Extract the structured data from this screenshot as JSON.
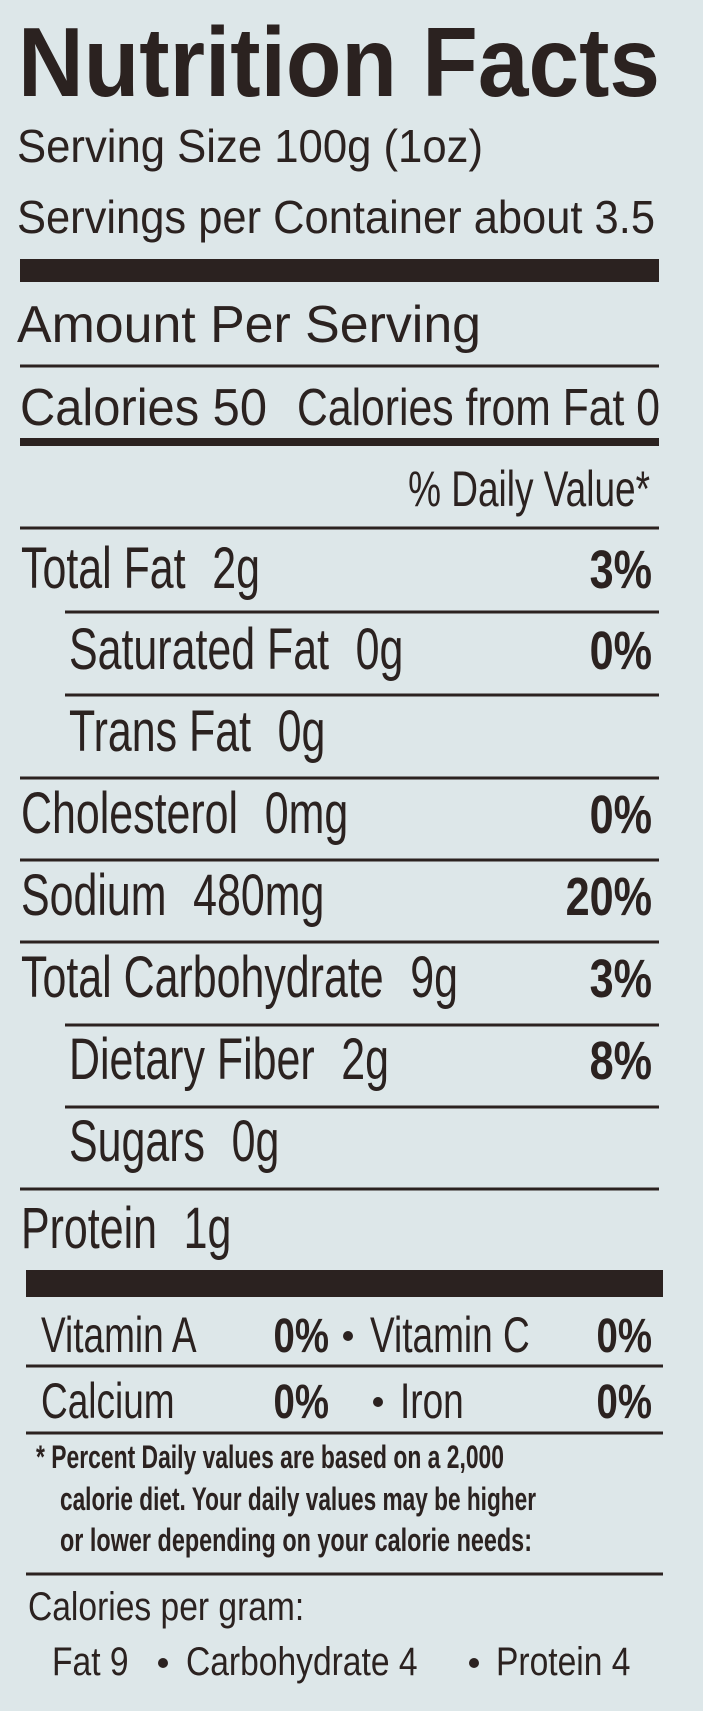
{
  "title": "Nutrition Facts",
  "serving_size": "Serving Size 100g (1oz)",
  "servings_per_container": "Servings per Container about 3.5",
  "amount_per_serving": "Amount Per Serving",
  "calories": "Calories 50",
  "calories_from_fat": "Calories from Fat 0",
  "daily_value_header": "% Daily Value*",
  "nutrients": [
    {
      "label": "Total Fat",
      "amount": "2g",
      "dv": "3%"
    },
    {
      "label": "Saturated Fat",
      "amount": "0g",
      "dv": "0%"
    },
    {
      "label": "Trans Fat",
      "amount": "0g"
    },
    {
      "label": "Cholesterol",
      "amount": "0mg",
      "dv": "0%"
    },
    {
      "label": "Sodium",
      "amount": "480mg",
      "dv": "20%"
    },
    {
      "label": "Total Carbohydrate",
      "amount": "9g",
      "dv": "3%"
    },
    {
      "label": "Dietary Fiber",
      "amount": "2g",
      "dv": "8%"
    },
    {
      "label": "Sugars",
      "amount": "0g"
    },
    {
      "label": "Protein",
      "amount": "1g"
    }
  ],
  "vitamins": [
    [
      {
        "label": "Vitamin A",
        "dv": "0%"
      },
      {
        "label": "Vitamin C",
        "dv": "0%"
      }
    ],
    [
      {
        "label": "Calcium",
        "dv": "0%"
      },
      {
        "label": "Iron",
        "dv": "0%"
      }
    ]
  ],
  "footnote": [
    "* Percent Daily values are based on a 2,000",
    "calorie diet.  Your daily values may be higher",
    "or lower depending on your calorie needs:"
  ],
  "calories_per_gram": {
    "title": "Calories per gram:",
    "items": [
      "Fat 9",
      "Carbohydrate 4",
      "Protein 4"
    ]
  }
}
